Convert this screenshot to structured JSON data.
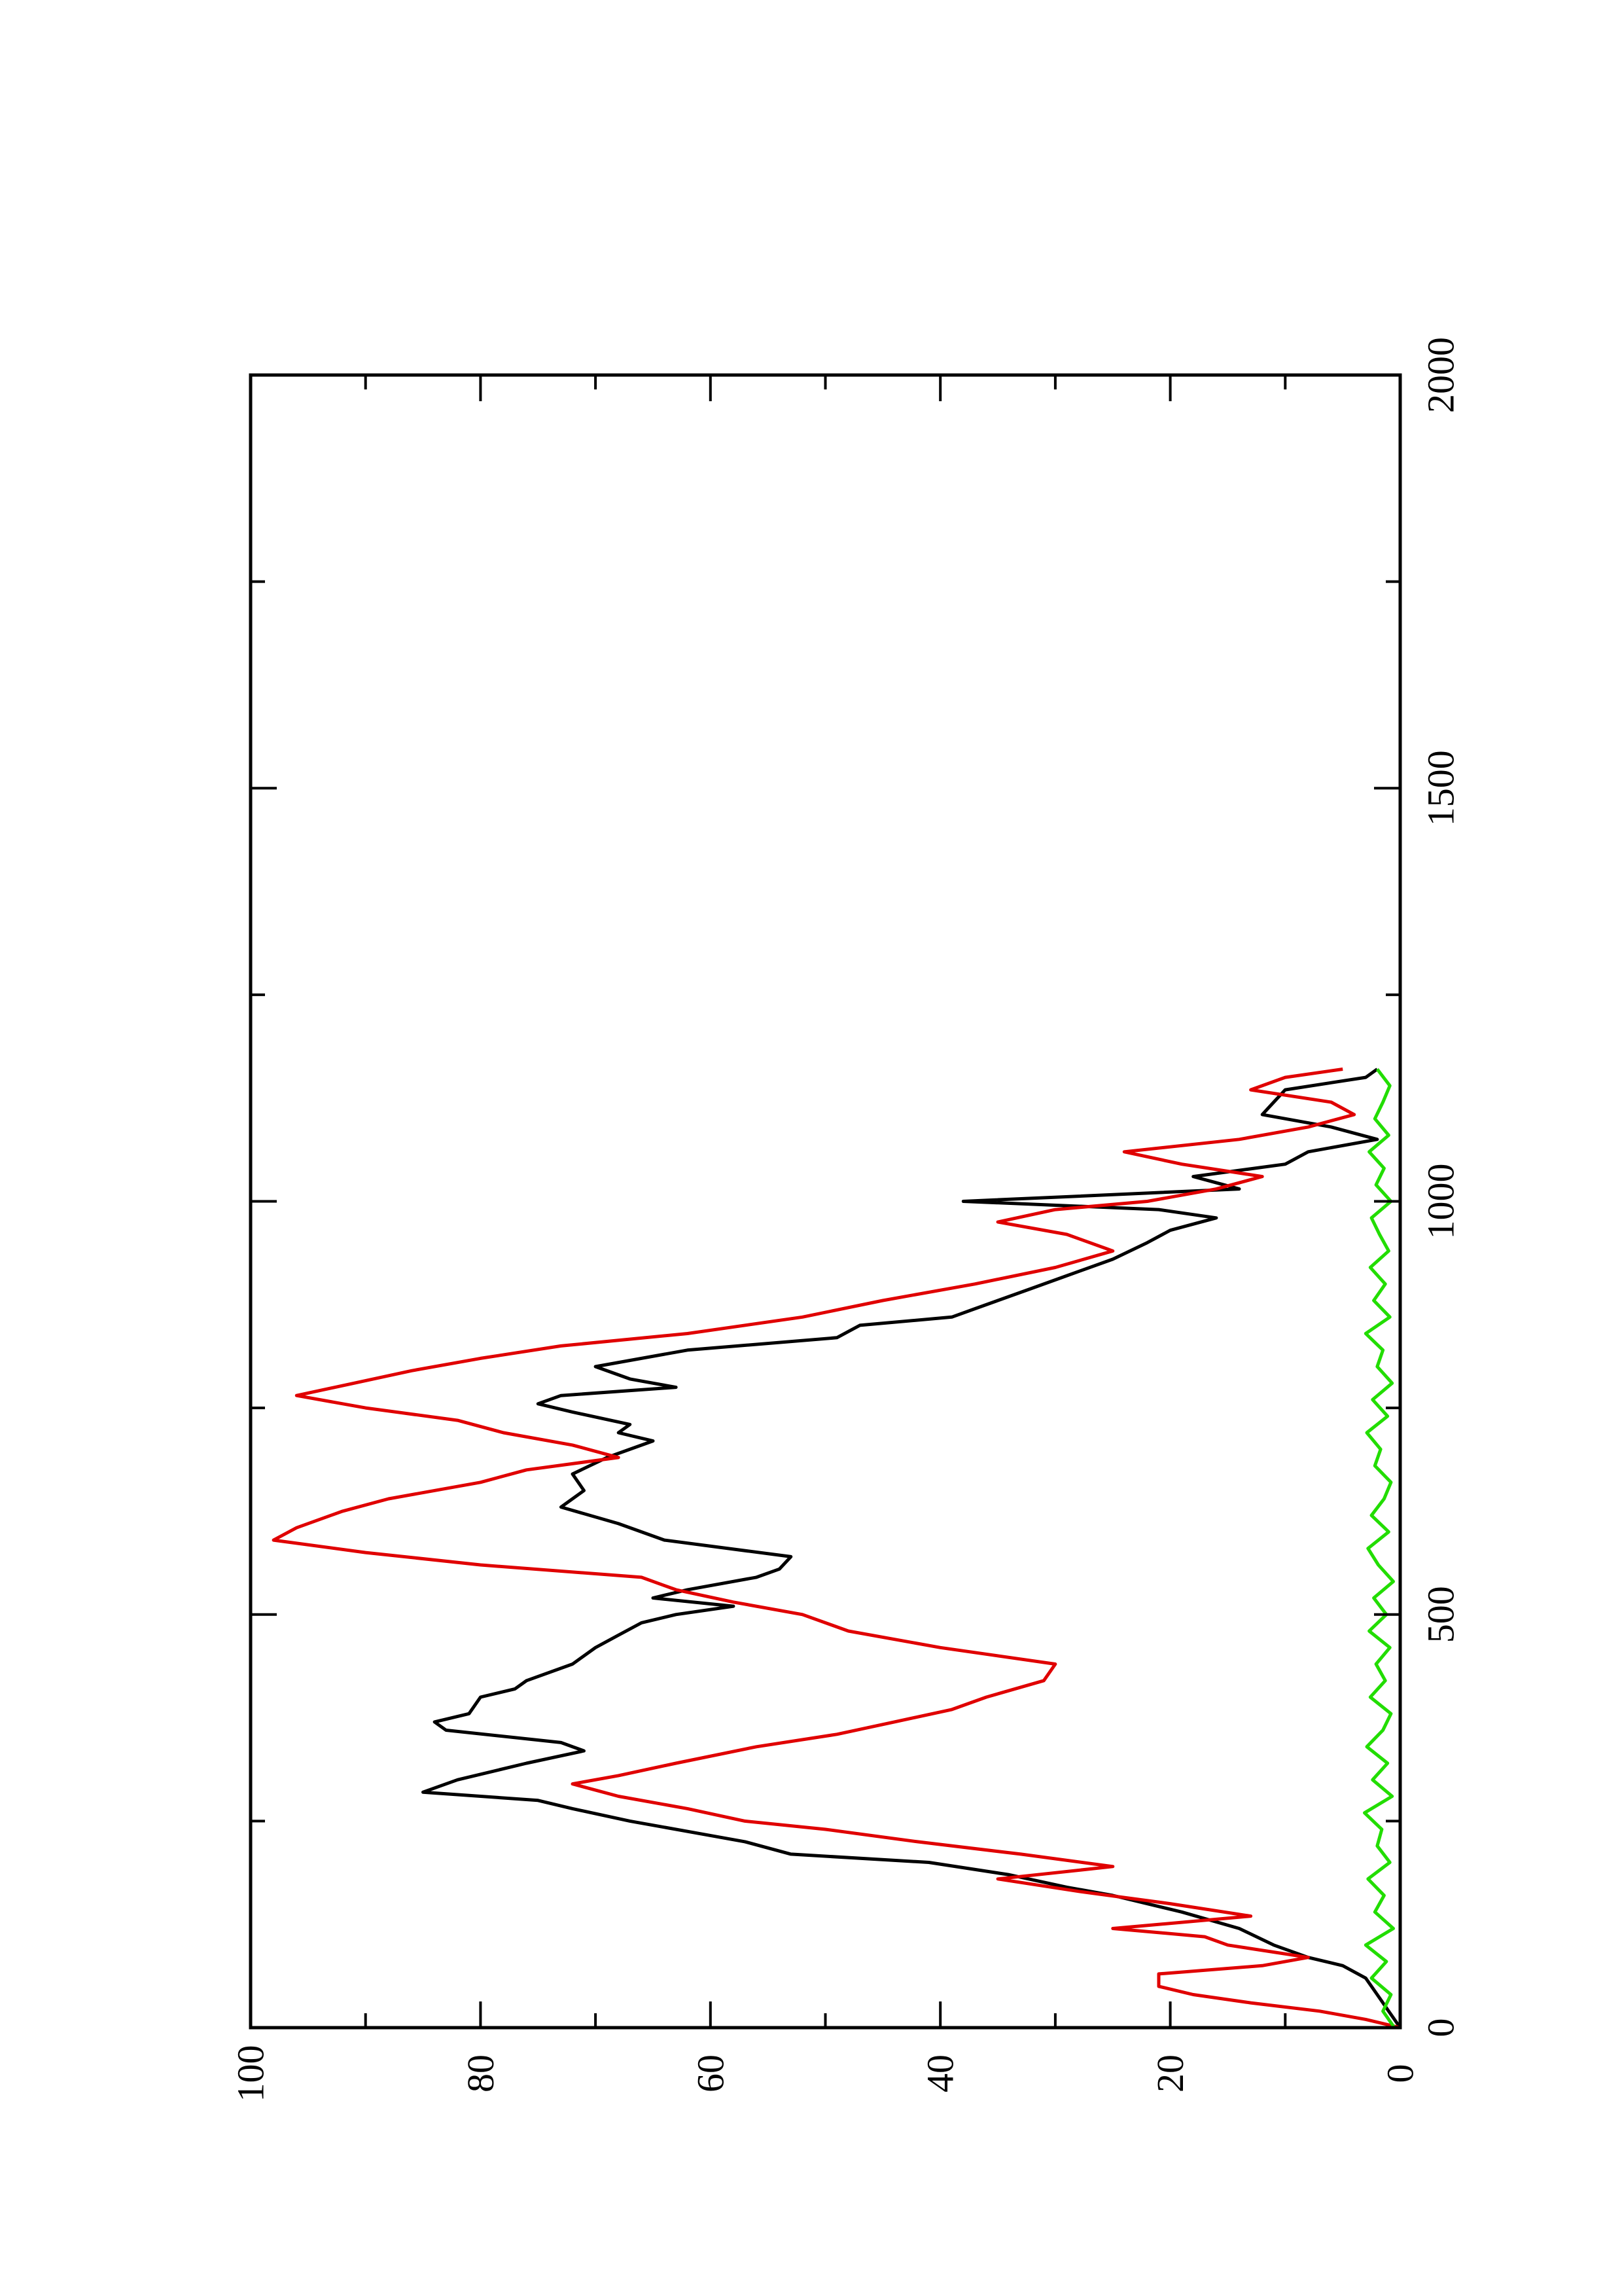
{
  "chart_data": {
    "type": "line",
    "title": "",
    "xlabel": "",
    "ylabel": "",
    "orientation": "rotated-90-ccw",
    "xlim": [
      0,
      2000
    ],
    "ylim": [
      0,
      100
    ],
    "x_ticks": [
      0,
      500,
      1000,
      1500,
      2000
    ],
    "x_tick_labels": [
      "0",
      "500",
      "1000",
      "1500",
      "2000"
    ],
    "y_ticks": [
      0,
      20,
      40,
      60,
      80,
      100
    ],
    "y_tick_labels": [
      "0",
      "20",
      "40",
      "60",
      "80",
      "100"
    ],
    "grid": false,
    "legend": "none",
    "colors": {
      "black_series": "#000000",
      "red_series": "#e00000",
      "green_series": "#22dd00",
      "axes": "#000000"
    },
    "series": [
      {
        "color": "#000000",
        "x": [
          0,
          20,
          40,
          60,
          75,
          85,
          100,
          120,
          140,
          160,
          170,
          185,
          200,
          210,
          225,
          235,
          250,
          265,
          275,
          285,
          300,
          320,
          335,
          345,
          360,
          370,
          380,
          400,
          410,
          420,
          440,
          460,
          475,
          490,
          500,
          510,
          520,
          530,
          545,
          555,
          570,
          590,
          610,
          630,
          650,
          670,
          690,
          710,
          720,
          730,
          745,
          755,
          765,
          775,
          785,
          800,
          820,
          835,
          850,
          860,
          870,
          880,
          895,
          910,
          930,
          950,
          965,
          980,
          990,
          1000,
          1015,
          1030,
          1045,
          1060,
          1075,
          1090,
          1105,
          1120,
          1135,
          1150,
          1160
        ],
        "y": [
          0,
          1,
          2,
          3,
          5,
          8,
          11,
          14,
          19,
          25,
          29,
          34,
          41,
          53,
          57,
          61,
          67,
          72,
          75,
          85,
          82,
          76,
          71,
          73,
          83,
          84,
          81,
          80,
          77,
          76,
          72,
          70,
          68,
          66,
          63,
          58,
          65,
          62,
          56,
          54,
          53,
          64,
          68,
          73,
          71,
          72,
          69,
          65,
          68,
          67,
          72,
          75,
          73,
          63,
          67,
          70,
          62,
          49,
          47,
          39,
          37,
          35,
          32,
          29,
          25,
          22,
          20,
          16,
          21,
          38,
          14,
          18,
          10,
          8,
          2,
          6,
          12,
          11,
          10,
          3,
          2
        ]
      },
      {
        "color": "#e00000",
        "x": [
          0,
          10,
          20,
          30,
          40,
          50,
          65,
          75,
          85,
          100,
          110,
          120,
          135,
          150,
          165,
          180,
          195,
          210,
          225,
          240,
          250,
          265,
          280,
          295,
          305,
          320,
          340,
          355,
          370,
          385,
          400,
          420,
          440,
          460,
          480,
          500,
          515,
          530,
          545,
          560,
          575,
          590,
          605,
          625,
          640,
          660,
          675,
          690,
          705,
          720,
          735,
          750,
          765,
          780,
          795,
          810,
          825,
          840,
          860,
          880,
          900,
          920,
          940,
          960,
          975,
          990,
          1000,
          1015,
          1030,
          1045,
          1060,
          1075,
          1090,
          1105,
          1120,
          1135,
          1150,
          1160
        ],
        "y": [
          0,
          3,
          7,
          13,
          18,
          21,
          21,
          12,
          8,
          15,
          17,
          25,
          13,
          20,
          28,
          35,
          25,
          33,
          42,
          50,
          57,
          62,
          68,
          72,
          68,
          63,
          56,
          49,
          44,
          39,
          36,
          31,
          30,
          40,
          48,
          52,
          58,
          63,
          66,
          80,
          90,
          98,
          96,
          92,
          88,
          80,
          76,
          68,
          72,
          78,
          82,
          90,
          96,
          91,
          86,
          80,
          73,
          62,
          52,
          45,
          37,
          30,
          25,
          29,
          35,
          30,
          22,
          16,
          12,
          19,
          24,
          14,
          8,
          4,
          6,
          13,
          10,
          5
        ]
      },
      {
        "color": "#22dd00",
        "x": [
          0,
          20,
          40,
          60,
          80,
          100,
          120,
          140,
          160,
          180,
          200,
          220,
          240,
          260,
          280,
          300,
          320,
          340,
          360,
          380,
          400,
          420,
          440,
          460,
          480,
          500,
          520,
          540,
          560,
          580,
          600,
          620,
          640,
          660,
          680,
          700,
          720,
          740,
          760,
          780,
          800,
          820,
          840,
          860,
          880,
          900,
          920,
          940,
          960,
          980,
          1000,
          1020,
          1040,
          1060,
          1080,
          1100,
          1120,
          1140,
          1160
        ],
        "y": [
          0.5,
          1.5,
          0.8,
          2.5,
          1.2,
          3.0,
          0.6,
          2.2,
          1.4,
          2.8,
          0.9,
          2.0,
          1.6,
          3.1,
          0.7,
          2.4,
          1.1,
          2.9,
          1.5,
          0.8,
          2.6,
          1.3,
          2.1,
          0.9,
          2.7,
          1.2,
          2.3,
          0.6,
          1.9,
          2.8,
          1.0,
          2.5,
          1.4,
          0.8,
          2.2,
          1.7,
          2.9,
          1.1,
          2.4,
          0.7,
          2.0,
          1.5,
          3.0,
          0.9,
          2.3,
          1.3,
          2.6,
          1.0,
          1.8,
          2.5,
          0.8,
          2.1,
          1.4,
          2.7,
          1.0,
          2.2,
          1.5,
          0.9,
          2.0
        ]
      }
    ]
  }
}
